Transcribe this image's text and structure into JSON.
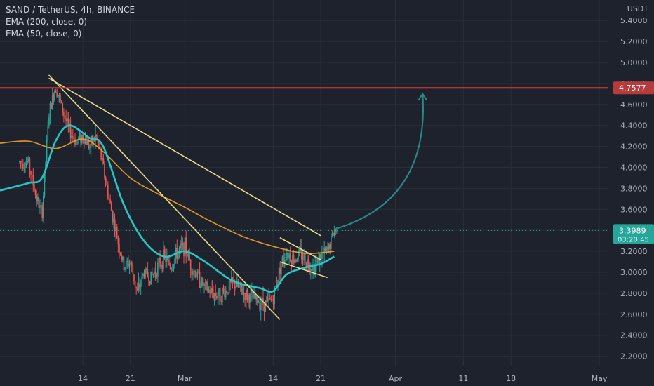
{
  "legend": {
    "title": "SAND / TetherUS, 4h, BINANCE",
    "ema200": "EMA (200, close, 0)",
    "ema50": "EMA (50, close, 0)"
  },
  "price_axis": {
    "unit": "USDT",
    "ticks": [
      "5.4000",
      "5.2000",
      "5.0000",
      "4.8000",
      "4.6000",
      "4.4000",
      "4.2000",
      "4.0000",
      "3.8000",
      "3.6000",
      "3.4000",
      "3.2000",
      "3.0000",
      "2.8000",
      "2.6000",
      "2.4000",
      "2.2000"
    ],
    "resistance_label": "4.7577",
    "current_price_label": "3.3989",
    "countdown_label": "03:20:45"
  },
  "time_axis": {
    "ticks": [
      "14",
      "21",
      "Mar",
      "14",
      "21",
      "Apr",
      "11",
      "18",
      "May"
    ]
  },
  "colors": {
    "background": "#1e222d",
    "grid": "#2a2e39",
    "candle_up": "#26a69a",
    "candle_down": "#ef5350",
    "ema200": "#f5a623",
    "ema50": "#26c6c6",
    "trendline": "#f3e08a",
    "resistance": "#e53935",
    "resistance_label_bg": "#b83b3b",
    "current_price_bg": "#26a69a",
    "arrow": "#2a8a8a"
  },
  "chart_data": {
    "type": "candlestick",
    "symbol": "SAND / TetherUS",
    "interval": "4h",
    "exchange": "BINANCE",
    "y_range": [
      2.1,
      5.5
    ],
    "resistance_level": 4.7577,
    "last_price": 3.3989,
    "price_anchors": [
      {
        "x": "Feb 6",
        "y": 4.05
      },
      {
        "x": "Feb 7",
        "y": 3.75
      },
      {
        "x": "Feb 8",
        "y": 3.55
      },
      {
        "x": "Feb 9",
        "y": 4.5
      },
      {
        "x": "Feb 10",
        "y": 4.78
      },
      {
        "x": "Feb 11",
        "y": 4.55
      },
      {
        "x": "Feb 12",
        "y": 4.35
      },
      {
        "x": "Feb 13",
        "y": 4.25
      },
      {
        "x": "Feb 14",
        "y": 4.3
      },
      {
        "x": "Feb 15",
        "y": 4.2
      },
      {
        "x": "Feb 16",
        "y": 4.3
      },
      {
        "x": "Feb 17",
        "y": 4.0
      },
      {
        "x": "Feb 18",
        "y": 3.65
      },
      {
        "x": "Feb 19",
        "y": 3.35
      },
      {
        "x": "Feb 20",
        "y": 3.05
      },
      {
        "x": "Feb 21",
        "y": 3.1
      },
      {
        "x": "Feb 22",
        "y": 2.8
      },
      {
        "x": "Feb 23",
        "y": 3.0
      },
      {
        "x": "Feb 24",
        "y": 2.95
      },
      {
        "x": "Feb 25",
        "y": 3.05
      },
      {
        "x": "Feb 26",
        "y": 3.15
      },
      {
        "x": "Feb 27",
        "y": 3.05
      },
      {
        "x": "Feb 28",
        "y": 3.2
      },
      {
        "x": "Mar 1",
        "y": 3.25
      },
      {
        "x": "Mar 2",
        "y": 3.05
      },
      {
        "x": "Mar 3",
        "y": 2.95
      },
      {
        "x": "Mar 4",
        "y": 2.85
      },
      {
        "x": "Mar 5",
        "y": 2.8
      },
      {
        "x": "Mar 6",
        "y": 2.78
      },
      {
        "x": "Mar 7",
        "y": 2.82
      },
      {
        "x": "Mar 8",
        "y": 2.9
      },
      {
        "x": "Mar 9",
        "y": 2.85
      },
      {
        "x": "Mar 10",
        "y": 2.78
      },
      {
        "x": "Mar 11",
        "y": 2.75
      },
      {
        "x": "Mar 12",
        "y": 2.72
      },
      {
        "x": "Mar 13",
        "y": 2.7
      },
      {
        "x": "Mar 14",
        "y": 2.75
      },
      {
        "x": "Mar 15",
        "y": 3.05
      },
      {
        "x": "Mar 16",
        "y": 3.2
      },
      {
        "x": "Mar 17",
        "y": 3.12
      },
      {
        "x": "Mar 18",
        "y": 3.18
      },
      {
        "x": "Mar 19",
        "y": 3.1
      },
      {
        "x": "Mar 20",
        "y": 3.05
      },
      {
        "x": "Mar 21",
        "y": 3.15
      },
      {
        "x": "Mar 22",
        "y": 3.2
      },
      {
        "x": "Mar 23",
        "y": 3.4
      }
    ],
    "ema200_anchors": [
      {
        "x": "Feb 6",
        "y": 4.25
      },
      {
        "x": "Feb 10",
        "y": 4.18
      },
      {
        "x": "Feb 14",
        "y": 4.27
      },
      {
        "x": "Feb 17",
        "y": 4.15
      },
      {
        "x": "Feb 21",
        "y": 3.9
      },
      {
        "x": "Feb 25",
        "y": 3.75
      },
      {
        "x": "Mar 1",
        "y": 3.62
      },
      {
        "x": "Mar 5",
        "y": 3.48
      },
      {
        "x": "Mar 10",
        "y": 3.33
      },
      {
        "x": "Mar 15",
        "y": 3.23
      },
      {
        "x": "Mar 19",
        "y": 3.18
      },
      {
        "x": "Mar 23",
        "y": 3.2
      }
    ],
    "ema50_anchors": [
      {
        "x": "Feb 6",
        "y": 3.85
      },
      {
        "x": "Feb 8",
        "y": 3.9
      },
      {
        "x": "Feb 10",
        "y": 4.25
      },
      {
        "x": "Feb 12",
        "y": 4.4
      },
      {
        "x": "Feb 15",
        "y": 4.28
      },
      {
        "x": "Feb 17",
        "y": 4.2
      },
      {
        "x": "Feb 20",
        "y": 3.65
      },
      {
        "x": "Feb 23",
        "y": 3.3
      },
      {
        "x": "Feb 26",
        "y": 3.15
      },
      {
        "x": "Mar 1",
        "y": 3.2
      },
      {
        "x": "Mar 4",
        "y": 3.1
      },
      {
        "x": "Mar 8",
        "y": 2.92
      },
      {
        "x": "Mar 12",
        "y": 2.85
      },
      {
        "x": "Mar 14",
        "y": 2.82
      },
      {
        "x": "Mar 16",
        "y": 2.98
      },
      {
        "x": "Mar 19",
        "y": 3.05
      },
      {
        "x": "Mar 21",
        "y": 3.08
      },
      {
        "x": "Mar 23",
        "y": 3.15
      }
    ],
    "trendlines": [
      {
        "from": {
          "x": "Feb 9",
          "y": 4.88
        },
        "to": {
          "x": "Mar 15",
          "y": 2.55
        }
      },
      {
        "from": {
          "x": "Feb 9",
          "y": 4.85
        },
        "to": {
          "x": "Mar 21",
          "y": 3.35
        }
      },
      {
        "from": {
          "x": "Mar 15",
          "y": 3.33
        },
        "to": {
          "x": "Mar 21",
          "y": 3.12
        }
      },
      {
        "from": {
          "x": "Mar 15",
          "y": 3.1
        },
        "to": {
          "x": "Mar 22",
          "y": 2.95
        }
      }
    ],
    "projection_arrow": {
      "from": {
        "x": "Mar 23",
        "y": 3.41
      },
      "to": {
        "x": "Apr 5",
        "y": 4.7
      }
    }
  }
}
